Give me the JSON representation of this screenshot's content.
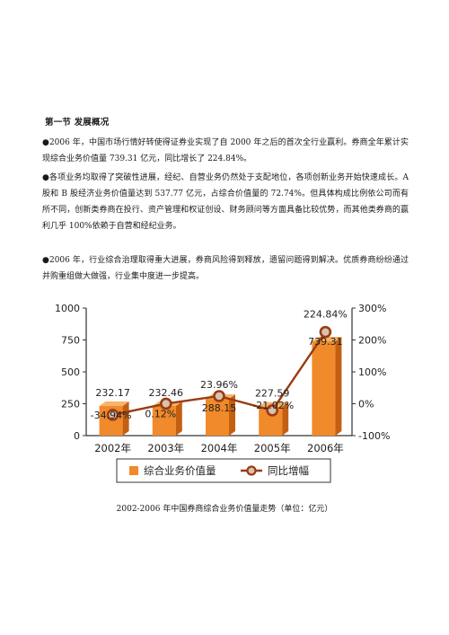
{
  "section": {
    "title": "第一节  发展概况"
  },
  "paragraphs": [
    {
      "bullet": "●",
      "text": "2006 年，中国市场行情好转使得证券业实现了自 2000 年之后的首次全行业赢利。券商全年累计实现综合业务价值量 739.31 亿元，同比增长了 224.84%。"
    },
    {
      "bullet": "●",
      "text": "各项业务均取得了突破性进展，经纪、自营业务仍然处于支配地位，各项创新业务开始快速成长。A 股和 B 股经济业务价值量达到 537.77 亿元，占综合价值量的 72.74%。但具体构成比例依公司而有所不同，创新类券商在投行、资产管理和权证创设、财务顾问等方面具备比较优势，而其他类券商的赢利几乎 100%依赖于自营和经纪业务。"
    },
    {
      "bullet": "●",
      "text": "2006 年，行业综合治理取得重大进展，券商风险得到释放，遗留问题得到解决。优质券商纷纷通过并购重组做大做强，行业集中度进一步提高。"
    }
  ],
  "chart_data": {
    "type": "bar",
    "categories": [
      "2002年",
      "2003年",
      "2004年",
      "2005年",
      "2006年"
    ],
    "series": [
      {
        "name": "综合业务价值量",
        "type": "bar",
        "axis": "left",
        "values": [
          232.17,
          232.46,
          288.15,
          227.59,
          739.31
        ],
        "labels": [
          "232.17",
          "232.46",
          "288.15",
          "227.59",
          "739.31"
        ]
      },
      {
        "name": "同比增幅",
        "type": "line",
        "axis": "right",
        "values": [
          -34.94,
          0.12,
          23.96,
          -21.02,
          224.84
        ],
        "labels": [
          "-34.94%",
          "0.12%",
          "23.96%",
          "-21.02%",
          "224.84%"
        ]
      }
    ],
    "y_left": {
      "range": [
        0,
        1000
      ],
      "ticks": [
        "0",
        "250",
        "500",
        "750",
        "1000"
      ]
    },
    "y_right": {
      "range": [
        -100,
        300
      ],
      "ticks": [
        "-100%",
        "0%",
        "100%",
        "200%",
        "300%"
      ]
    },
    "legend_position": "bottom",
    "colors": {
      "bar_front": "#f08a2a",
      "bar_side": "#c45f12",
      "bar_top": "#f7b36a",
      "line": "#9a3c12",
      "marker_fill": "#d9c2b0"
    }
  },
  "caption": "2002-2006 年中国券商综合业务价值量走势（单位：亿元）"
}
